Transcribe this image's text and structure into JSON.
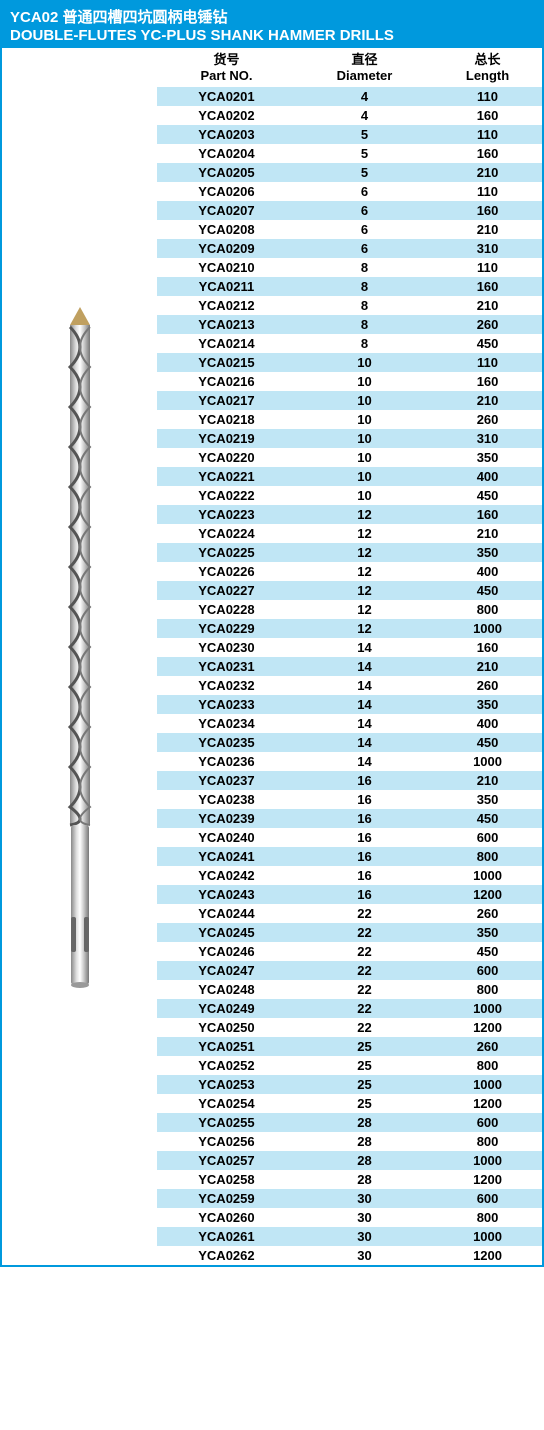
{
  "header": {
    "title_cn": "YCA02 普通四槽四坑圆柄电锤钻",
    "title_en": "DOUBLE-FLUTES YC-PLUS SHANK HAMMER DRILLS"
  },
  "table": {
    "columns": [
      {
        "cn": "货号",
        "en": "Part NO."
      },
      {
        "cn": "直径",
        "en": "Diameter"
      },
      {
        "cn": "总长",
        "en": "Length"
      }
    ],
    "rows": [
      [
        "YCA0201",
        "4",
        "110"
      ],
      [
        "YCA0202",
        "4",
        "160"
      ],
      [
        "YCA0203",
        "5",
        "110"
      ],
      [
        "YCA0204",
        "5",
        "160"
      ],
      [
        "YCA0205",
        "5",
        "210"
      ],
      [
        "YCA0206",
        "6",
        "110"
      ],
      [
        "YCA0207",
        "6",
        "160"
      ],
      [
        "YCA0208",
        "6",
        "210"
      ],
      [
        "YCA0209",
        "6",
        "310"
      ],
      [
        "YCA0210",
        "8",
        "110"
      ],
      [
        "YCA0211",
        "8",
        "160"
      ],
      [
        "YCA0212",
        "8",
        "210"
      ],
      [
        "YCA0213",
        "8",
        "260"
      ],
      [
        "YCA0214",
        "8",
        "450"
      ],
      [
        "YCA0215",
        "10",
        "110"
      ],
      [
        "YCA0216",
        "10",
        "160"
      ],
      [
        "YCA0217",
        "10",
        "210"
      ],
      [
        "YCA0218",
        "10",
        "260"
      ],
      [
        "YCA0219",
        "10",
        "310"
      ],
      [
        "YCA0220",
        "10",
        "350"
      ],
      [
        "YCA0221",
        "10",
        "400"
      ],
      [
        "YCA0222",
        "10",
        "450"
      ],
      [
        "YCA0223",
        "12",
        "160"
      ],
      [
        "YCA0224",
        "12",
        "210"
      ],
      [
        "YCA0225",
        "12",
        "350"
      ],
      [
        "YCA0226",
        "12",
        "400"
      ],
      [
        "YCA0227",
        "12",
        "450"
      ],
      [
        "YCA0228",
        "12",
        "800"
      ],
      [
        "YCA0229",
        "12",
        "1000"
      ],
      [
        "YCA0230",
        "14",
        "160"
      ],
      [
        "YCA0231",
        "14",
        "210"
      ],
      [
        "YCA0232",
        "14",
        "260"
      ],
      [
        "YCA0233",
        "14",
        "350"
      ],
      [
        "YCA0234",
        "14",
        "400"
      ],
      [
        "YCA0235",
        "14",
        "450"
      ],
      [
        "YCA0236",
        "14",
        "1000"
      ],
      [
        "YCA0237",
        "16",
        "210"
      ],
      [
        "YCA0238",
        "16",
        "350"
      ],
      [
        "YCA0239",
        "16",
        "450"
      ],
      [
        "YCA0240",
        "16",
        "600"
      ],
      [
        "YCA0241",
        "16",
        "800"
      ],
      [
        "YCA0242",
        "16",
        "1000"
      ],
      [
        "YCA0243",
        "16",
        "1200"
      ],
      [
        "YCA0244",
        "22",
        "260"
      ],
      [
        "YCA0245",
        "22",
        "350"
      ],
      [
        "YCA0246",
        "22",
        "450"
      ],
      [
        "YCA0247",
        "22",
        "600"
      ],
      [
        "YCA0248",
        "22",
        "800"
      ],
      [
        "YCA0249",
        "22",
        "1000"
      ],
      [
        "YCA0250",
        "22",
        "1200"
      ],
      [
        "YCA0251",
        "25",
        "260"
      ],
      [
        "YCA0252",
        "25",
        "800"
      ],
      [
        "YCA0253",
        "25",
        "1000"
      ],
      [
        "YCA0254",
        "25",
        "1200"
      ],
      [
        "YCA0255",
        "28",
        "600"
      ],
      [
        "YCA0256",
        "28",
        "800"
      ],
      [
        "YCA0257",
        "28",
        "1000"
      ],
      [
        "YCA0258",
        "28",
        "1200"
      ],
      [
        "YCA0259",
        "30",
        "600"
      ],
      [
        "YCA0260",
        "30",
        "800"
      ],
      [
        "YCA0261",
        "30",
        "1000"
      ],
      [
        "YCA0262",
        "30",
        "1200"
      ]
    ],
    "row_odd_bg": "#c0e6f5",
    "row_even_bg": "#ffffff",
    "header_color": "#0099dd",
    "text_color": "#000000"
  },
  "image": {
    "alt": "hammer-drill-bit"
  }
}
